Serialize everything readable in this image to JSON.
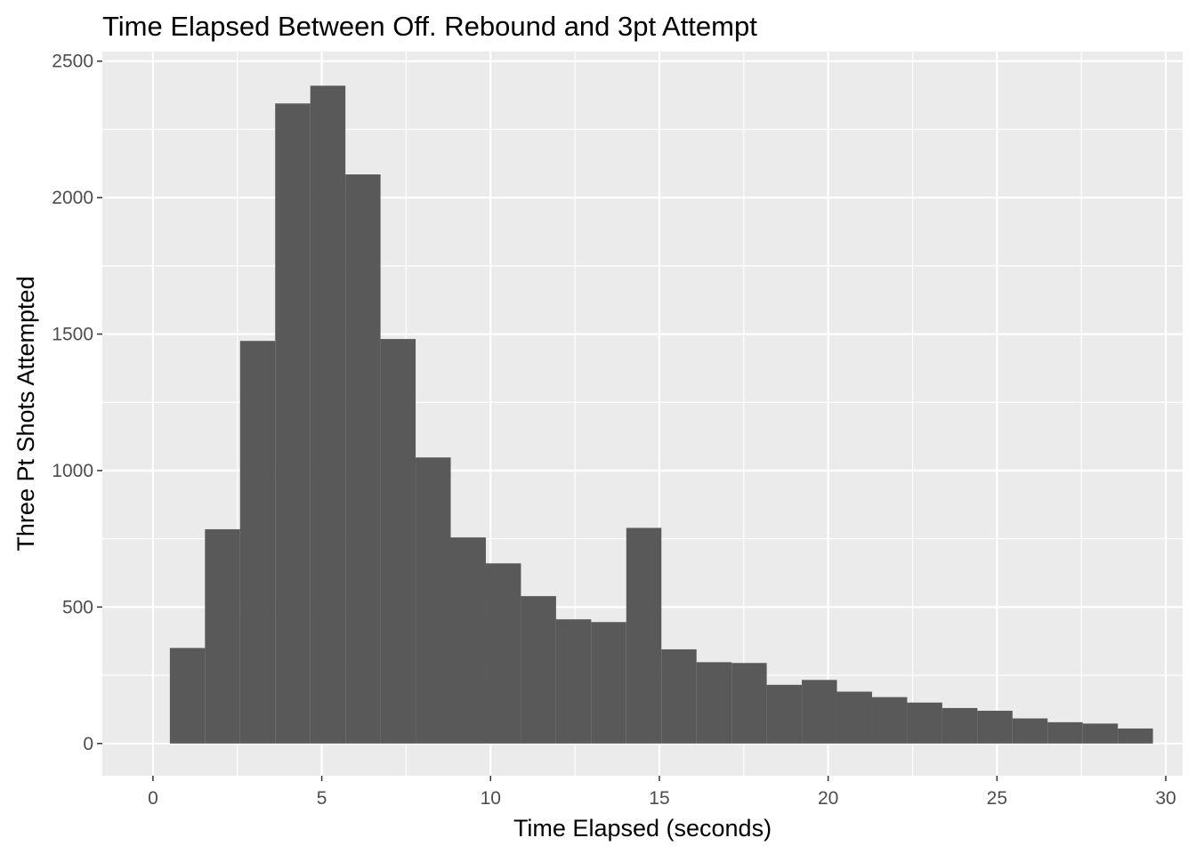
{
  "chart_data": {
    "type": "bar",
    "title": "Time Elapsed Between Off. Rebound and 3pt Attempt",
    "xlabel": "Time Elapsed (seconds)",
    "ylabel": "Three Pt Shots Attempted",
    "xlim": [
      -1.5,
      30.5
    ],
    "ylim": [
      -118,
      2535
    ],
    "x_ticks": [
      0,
      5,
      10,
      15,
      20,
      25,
      30
    ],
    "y_ticks": [
      0,
      500,
      1000,
      1500,
      2000,
      2500
    ],
    "x_minor_ticks": [
      2.5,
      7.5,
      12.5,
      17.5,
      22.5,
      27.5
    ],
    "y_minor_ticks": [
      250,
      750,
      1250,
      1750,
      2250
    ],
    "bin_width": 1.04,
    "bins_start": [
      0.5,
      1.54,
      2.58,
      3.62,
      4.66,
      5.7,
      6.74,
      7.78,
      8.82,
      9.86,
      10.9,
      11.94,
      12.98,
      14.02,
      15.06,
      16.1,
      17.14,
      18.18,
      19.22,
      20.26,
      21.3,
      22.34,
      23.38,
      24.42,
      25.46,
      26.5,
      27.54,
      28.58
    ],
    "values": [
      350,
      785,
      1475,
      2345,
      2410,
      2085,
      1482,
      1048,
      755,
      660,
      540,
      455,
      445,
      790,
      345,
      298,
      295,
      215,
      233,
      190,
      170,
      150,
      130,
      120,
      92,
      78,
      73,
      55
    ],
    "bar_color": "#595959",
    "panel_color": "#ebebeb",
    "grid": true
  }
}
